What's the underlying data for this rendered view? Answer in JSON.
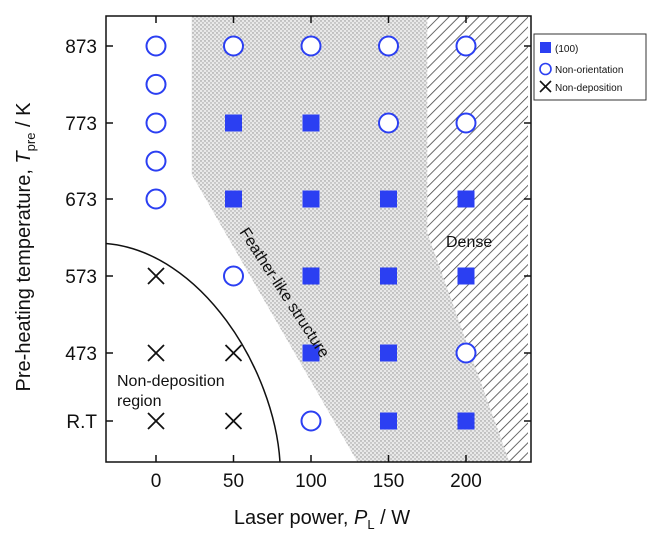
{
  "chart_data": {
    "type": "scatter",
    "xlabel": {
      "main": "Laser power, ",
      "var": "P",
      "sub": "L",
      "unit": " / W"
    },
    "ylabel": {
      "main": "Pre-heating temperature, ",
      "var": "T",
      "sub": "pre",
      "unit": " / K"
    },
    "x_ticks": [
      0,
      50,
      100,
      150,
      200
    ],
    "y_ticks": [
      "R.T",
      "473",
      "573",
      "673",
      "773",
      "873"
    ],
    "xlim": [
      -33,
      240
    ],
    "ylim": [
      "R.T",
      "873"
    ],
    "grid": false,
    "legend_position": "top-right",
    "series": [
      {
        "name": "(100)",
        "marker": "filled-square",
        "color": "#2b3ff2",
        "points": [
          {
            "x": 50,
            "y": "773"
          },
          {
            "x": 100,
            "y": "773"
          },
          {
            "x": 50,
            "y": "673"
          },
          {
            "x": 100,
            "y": "673"
          },
          {
            "x": 150,
            "y": "673"
          },
          {
            "x": 200,
            "y": "673"
          },
          {
            "x": 100,
            "y": "573"
          },
          {
            "x": 150,
            "y": "573"
          },
          {
            "x": 200,
            "y": "573"
          },
          {
            "x": 100,
            "y": "473"
          },
          {
            "x": 150,
            "y": "473"
          },
          {
            "x": 150,
            "y": "R.T"
          },
          {
            "x": 200,
            "y": "R.T"
          }
        ]
      },
      {
        "name": "Non-orientation",
        "marker": "open-circle",
        "color": "#2b3ff2",
        "points": [
          {
            "x": 0,
            "y": "873"
          },
          {
            "x": 50,
            "y": "873"
          },
          {
            "x": 100,
            "y": "873"
          },
          {
            "x": 150,
            "y": "873"
          },
          {
            "x": 200,
            "y": "873"
          },
          {
            "x": 0,
            "y": 823
          },
          {
            "x": 0,
            "y": "773"
          },
          {
            "x": 150,
            "y": "773"
          },
          {
            "x": 200,
            "y": "773"
          },
          {
            "x": 0,
            "y": 723
          },
          {
            "x": 0,
            "y": "673"
          },
          {
            "x": 50,
            "y": "573"
          },
          {
            "x": 200,
            "y": "473"
          },
          {
            "x": 100,
            "y": "R.T"
          }
        ]
      },
      {
        "name": "Non-deposition",
        "marker": "cross",
        "color": "#111111",
        "points": [
          {
            "x": 0,
            "y": "573"
          },
          {
            "x": 0,
            "y": "473"
          },
          {
            "x": 50,
            "y": "473"
          },
          {
            "x": 0,
            "y": "R.T"
          },
          {
            "x": 50,
            "y": "R.T"
          }
        ]
      }
    ],
    "regions": {
      "feather": "Feather-like structure",
      "dense": "Dense",
      "nondep_line1": "Non-deposition",
      "nondep_line2": "region"
    },
    "colors": {
      "marker": "#2b3ff2",
      "axis": "#111111",
      "stipple": "#b9b9b9"
    }
  }
}
